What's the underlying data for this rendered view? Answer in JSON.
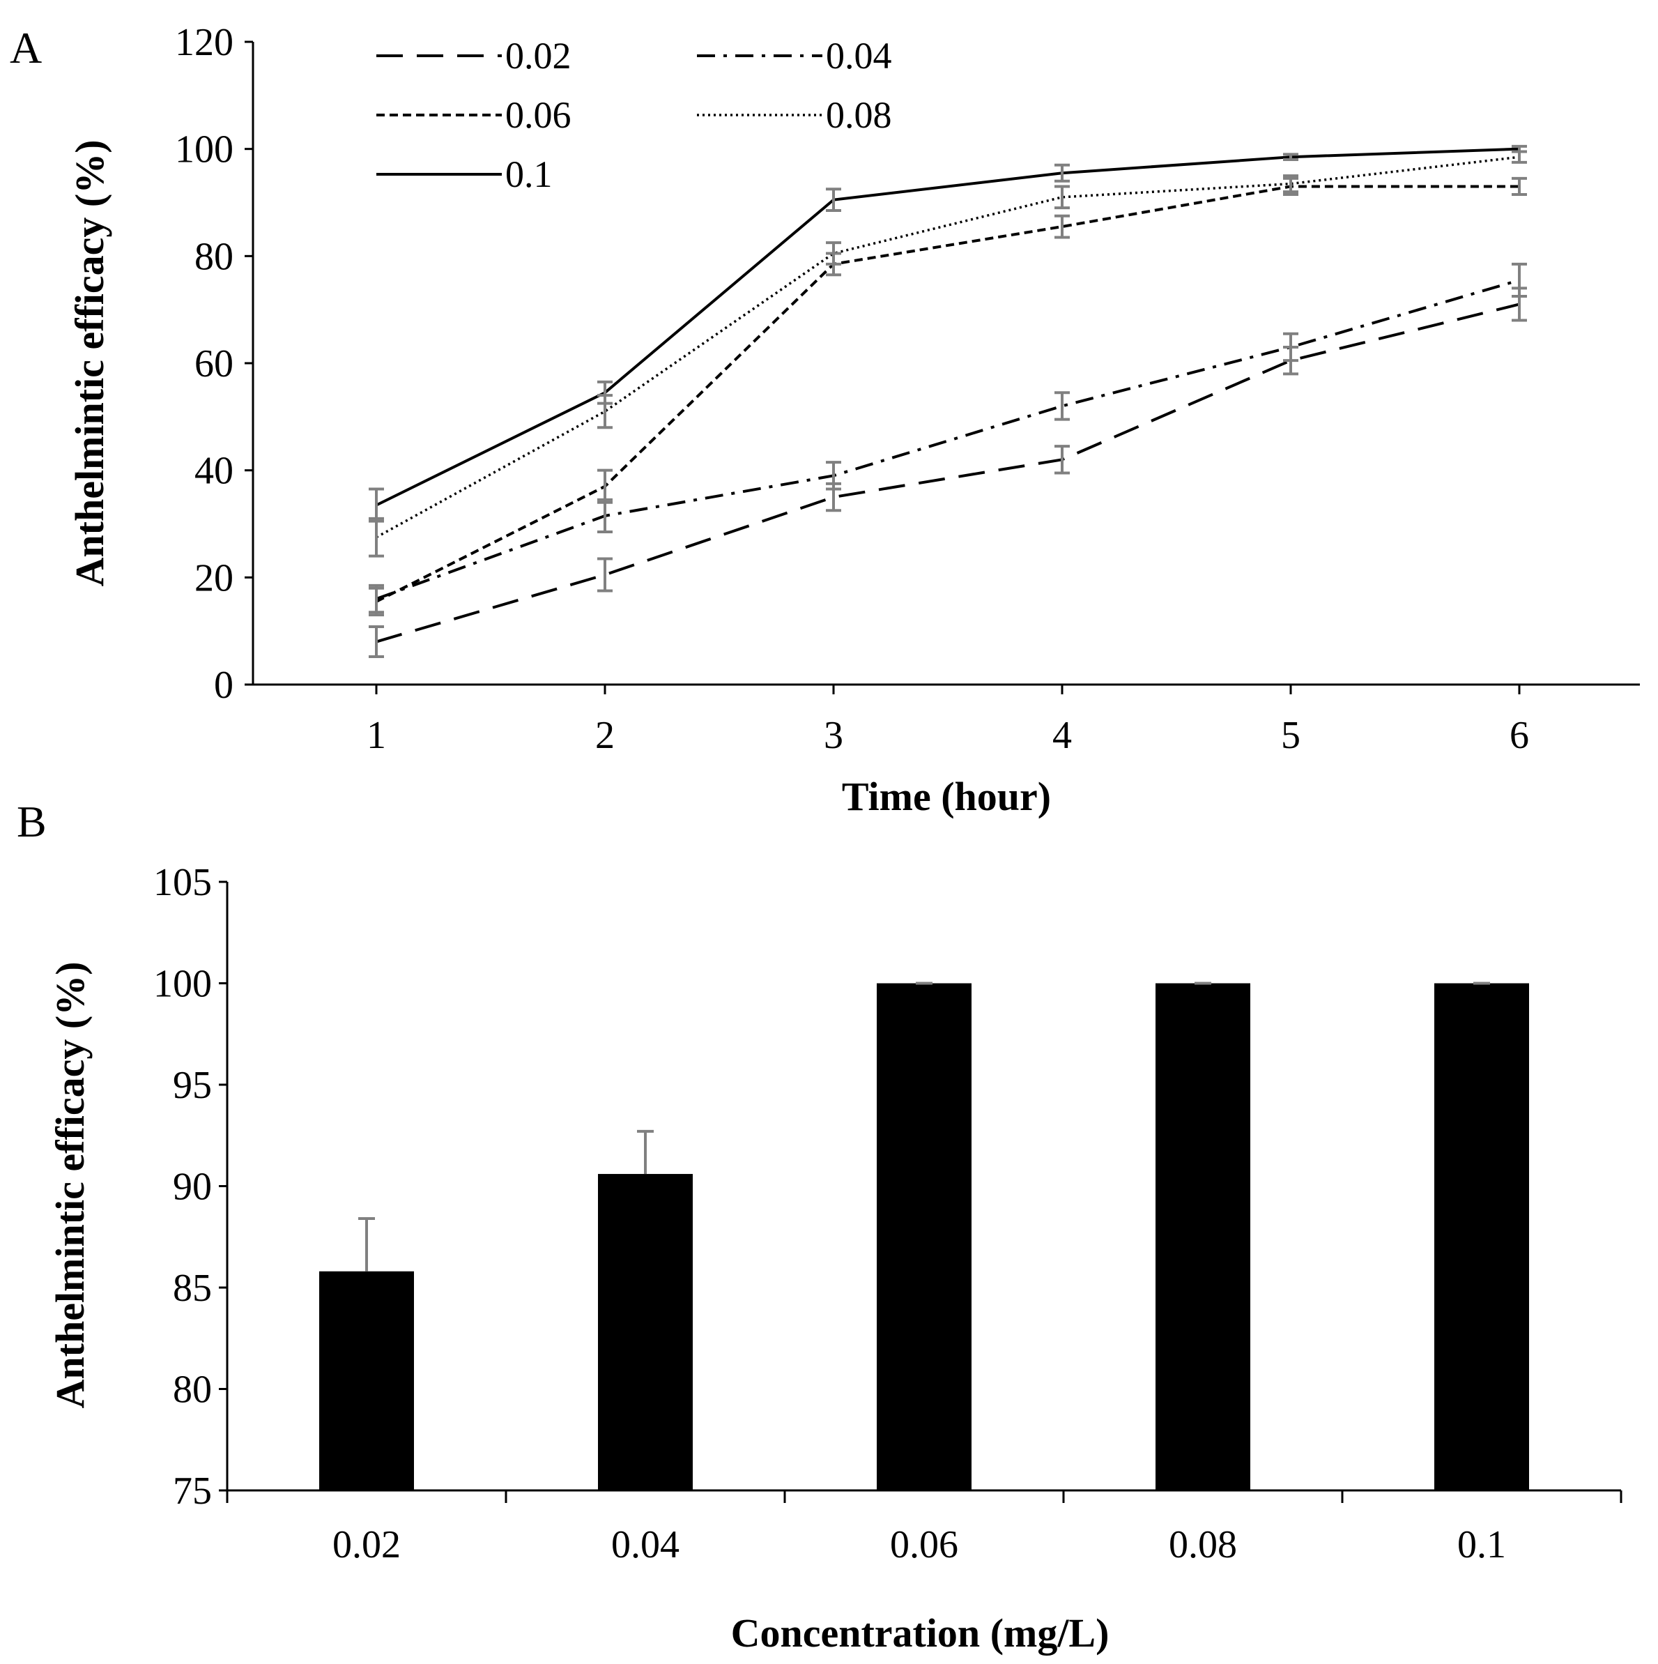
{
  "chart_data": [
    {
      "type": "line",
      "panel_label": "A",
      "title": "",
      "xlabel": "Time (hour)",
      "ylabel": "Anthelmintic efficacy (%)",
      "x": [
        1,
        2,
        3,
        4,
        5,
        6
      ],
      "xticks": [
        "1",
        "2",
        "3",
        "4",
        "5",
        "6"
      ],
      "ylim": [
        0,
        120
      ],
      "yticks": [
        "0",
        "20",
        "40",
        "60",
        "80",
        "100",
        "120"
      ],
      "grid": false,
      "legend_position": "top-left",
      "series": [
        {
          "name": "0.02",
          "style": "long-dash",
          "values": [
            8,
            20.5,
            35,
            42,
            60.5,
            71
          ],
          "errors": [
            2.8,
            3,
            2.5,
            2.5,
            2.5,
            3
          ]
        },
        {
          "name": "0.04",
          "style": "dash-dot",
          "values": [
            16,
            31.5,
            39,
            52,
            63,
            75.5
          ],
          "errors": [
            2.5,
            3,
            2.5,
            2.5,
            2.5,
            3
          ]
        },
        {
          "name": "0.06",
          "style": "short-dash",
          "values": [
            15.5,
            37,
            78.5,
            85.5,
            93,
            93
          ],
          "errors": [
            2.5,
            3,
            2,
            2,
            1.5,
            1.5
          ]
        },
        {
          "name": "0.08",
          "style": "dotted",
          "values": [
            27.5,
            51,
            80.5,
            91,
            93.5,
            98.5
          ],
          "errors": [
            3.5,
            3,
            2,
            2,
            1.5,
            1
          ]
        },
        {
          "name": "0.1",
          "style": "solid",
          "values": [
            33.5,
            54.5,
            90.5,
            95.5,
            98.5,
            100
          ],
          "errors": [
            3,
            2,
            2,
            1.5,
            0.5,
            0.5
          ]
        }
      ]
    },
    {
      "type": "bar",
      "panel_label": "B",
      "title": "",
      "xlabel": "Concentration (mg/L)",
      "ylabel": "Anthelmintic efficacy (%)",
      "categories": [
        "0.02",
        "0.04",
        "0.06",
        "0.08",
        "0.1"
      ],
      "values": [
        85.8,
        90.6,
        100,
        100,
        100
      ],
      "errors": [
        2.6,
        2.1,
        0,
        0,
        0
      ],
      "ylim": [
        75,
        105
      ],
      "yticks": [
        "75",
        "80",
        "85",
        "90",
        "95",
        "100",
        "105"
      ],
      "grid": false,
      "bar_color": "#000000",
      "error_color": "#808080"
    }
  ]
}
